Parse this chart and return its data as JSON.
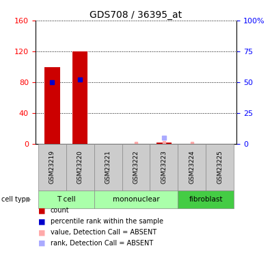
{
  "title": "GDS708 / 36395_at",
  "samples": [
    "GSM23219",
    "GSM23220",
    "GSM23221",
    "GSM23222",
    "GSM23223",
    "GSM23224",
    "GSM23225"
  ],
  "count_values": [
    100,
    120,
    0,
    0,
    2,
    0,
    0
  ],
  "percentile_present": [
    50,
    52,
    0,
    0,
    0,
    0,
    0
  ],
  "count_absent": [
    0,
    0,
    0,
    1,
    2,
    1,
    0
  ],
  "percentile_absent": [
    0,
    0,
    0,
    0,
    5,
    0,
    0
  ],
  "cell_groups": [
    {
      "label": "T cell",
      "start": 0,
      "end": 2
    },
    {
      "label": "mononuclear",
      "start": 2,
      "end": 5
    },
    {
      "label": "fibroblast",
      "start": 5,
      "end": 7
    }
  ],
  "group_colors": [
    "#AAFFAA",
    "#AAFFAA",
    "#44CC44"
  ],
  "ylim_left": [
    0,
    160
  ],
  "ylim_right": [
    0,
    100
  ],
  "yticks_left": [
    0,
    40,
    80,
    120,
    160
  ],
  "yticks_right": [
    0,
    25,
    50,
    75,
    100
  ],
  "yticklabels_right": [
    "0",
    "25",
    "50",
    "75",
    "100%"
  ],
  "bar_color": "#CC0000",
  "percentile_color": "#0000CC",
  "absent_value_color": "#FFAAAA",
  "absent_rank_color": "#AAAAFF",
  "title_fontsize": 10,
  "tick_fontsize": 8,
  "bar_width": 0.55
}
